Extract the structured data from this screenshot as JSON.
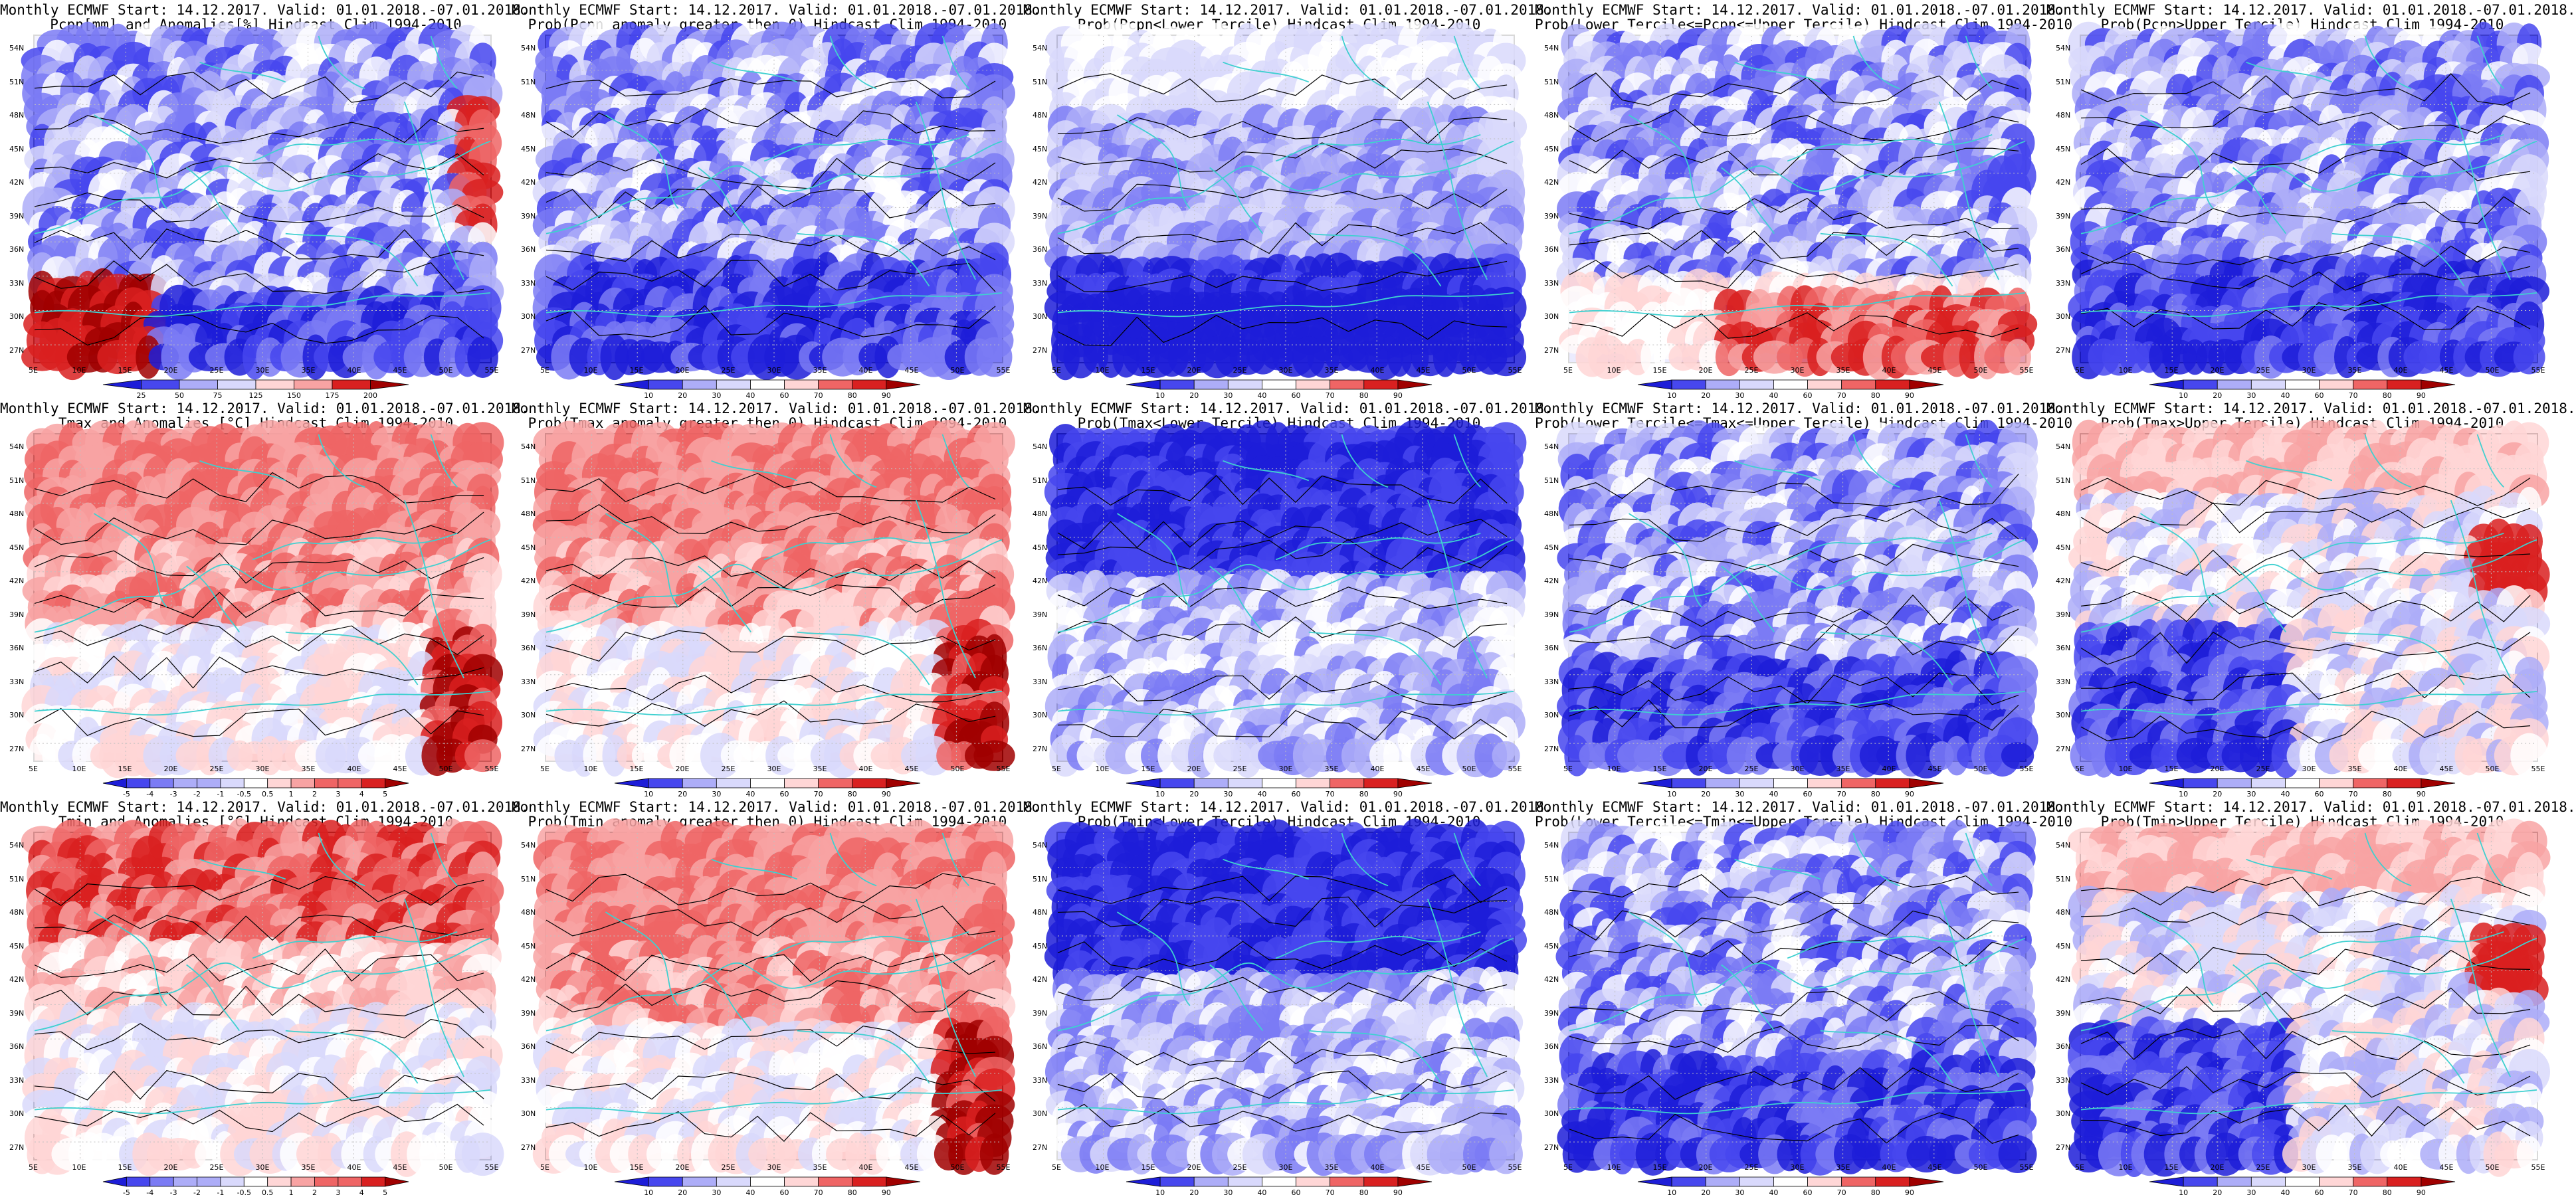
{
  "panels": [
    {
      "line1": "Monthly ECMWF Start: 14.12.2017. Valid: 01.01.2018.-07.01.2018.",
      "line2": "Pcpn[mm] and Anomalies[%] Hindcast Clim 1994-2010",
      "scale": "pcpn",
      "ticks": [
        "25",
        "50",
        "75",
        "125",
        "150",
        "175",
        "200"
      ],
      "pattern": "pcpn_anom"
    },
    {
      "line1": "Monthly ECMWF Start: 14.12.2017. Valid: 01.01.2018.-07.01.2018.",
      "line2": "Prob(Pcpn anomaly greater then 0) Hindcast Clim 1994-2010",
      "scale": "prob",
      "ticks": [
        "10",
        "20",
        "30",
        "40",
        "60",
        "70",
        "80",
        "90"
      ],
      "pattern": "blue_mid"
    },
    {
      "line1": "Monthly ECMWF Start: 14.12.2017. Valid: 01.01.2018.-07.01.2018.",
      "line2": "Prob(Pcpn<Lower Tercile) Hindcast Clim 1994-2010",
      "scale": "prob",
      "ticks": [
        "10",
        "20",
        "30",
        "40",
        "60",
        "70",
        "80",
        "90"
      ],
      "pattern": "blue_south"
    },
    {
      "line1": "Monthly ECMWF Start: 14.12.2017. Valid: 01.01.2018.-07.01.2018.",
      "line2": "Prob(Lower Tercile<=Pcpn<=Upper Tercile) Hindcast Clim 1994-2010",
      "scale": "prob",
      "ticks": [
        "10",
        "20",
        "30",
        "40",
        "60",
        "70",
        "80",
        "90"
      ],
      "pattern": "mixed_red_south"
    },
    {
      "line1": "Monthly ECMWF Start: 14.12.2017. Valid: 01.01.2018.-07.01.2018.",
      "line2": "Prob(Pcpn>Upper Tercile) Hindcast Clim 1994-2010",
      "scale": "prob",
      "ticks": [
        "10",
        "20",
        "30",
        "40",
        "60",
        "70",
        "80",
        "90"
      ],
      "pattern": "blue_mid"
    },
    {
      "line1": "Monthly ECMWF Start: 14.12.2017. Valid: 01.01.2018.-07.01.2018.",
      "line2": "Tmax and Anomalies [°C] Hindcast Clim 1994-2010",
      "scale": "temp",
      "ticks": [
        "-5",
        "-4",
        "-3",
        "-2",
        "-1",
        "-0.5",
        "0.5",
        "1",
        "2",
        "3",
        "4",
        "5"
      ],
      "pattern": "red_north"
    },
    {
      "line1": "Monthly ECMWF Start: 14.12.2017. Valid: 01.01.2018.-07.01.2018.",
      "line2": "Prob(Tmax anomaly greater then 0) Hindcast Clim 1994-2010",
      "scale": "prob",
      "ticks": [
        "10",
        "20",
        "30",
        "40",
        "60",
        "70",
        "80",
        "90"
      ],
      "pattern": "red_north"
    },
    {
      "line1": "Monthly ECMWF Start: 14.12.2017. Valid: 01.01.2018.-07.01.2018.",
      "line2": "Prob(Tmax<Lower Tercile) Hindcast Clim 1994-2010",
      "scale": "prob",
      "ticks": [
        "10",
        "20",
        "30",
        "40",
        "60",
        "70",
        "80",
        "90"
      ],
      "pattern": "blue_north"
    },
    {
      "line1": "Monthly ECMWF Start: 14.12.2017. Valid: 01.01.2018.-07.01.2018.",
      "line2": "Prob(Lower Tercile<=Tmax<=Upper Tercile) Hindcast Clim 1994-2010",
      "scale": "prob",
      "ticks": [
        "10",
        "20",
        "30",
        "40",
        "60",
        "70",
        "80",
        "90"
      ],
      "pattern": "blue_mid"
    },
    {
      "line1": "Monthly ECMWF Start: 14.12.2017. Valid: 01.01.2018.-07.01.2018.",
      "line2": "Prob(Tmax>Upper Tercile) Hindcast Clim 1994-2010",
      "scale": "prob",
      "ticks": [
        "10",
        "20",
        "30",
        "40",
        "60",
        "70",
        "80",
        "90"
      ],
      "pattern": "light_blue_sw"
    },
    {
      "line1": "Monthly ECMWF Start: 14.12.2017. Valid: 01.01.2018.-07.01.2018.",
      "line2": "Tmin and Anomalies [°C] Hindcast Clim 1994-2010",
      "scale": "temp",
      "ticks": [
        "-5",
        "-4",
        "-3",
        "-2",
        "-1",
        "-0.5",
        "0.5",
        "1",
        "2",
        "3",
        "4",
        "5"
      ],
      "pattern": "red_north_white_south"
    },
    {
      "line1": "Monthly ECMWF Start: 14.12.2017. Valid: 01.01.2018.-07.01.2018.",
      "line2": "Prob(Tmin anomaly greater then 0) Hindcast Clim 1994-2010",
      "scale": "prob",
      "ticks": [
        "10",
        "20",
        "30",
        "40",
        "60",
        "70",
        "80",
        "90"
      ],
      "pattern": "red_north"
    },
    {
      "line1": "Monthly ECMWF Start: 14.12.2017. Valid: 01.01.2018.-07.01.2018.",
      "line2": "Prob(Tmin<Lower Tercile) Hindcast Clim 1994-2010",
      "scale": "prob",
      "ticks": [
        "10",
        "20",
        "30",
        "40",
        "60",
        "70",
        "80",
        "90"
      ],
      "pattern": "blue_north"
    },
    {
      "line1": "Monthly ECMWF Start: 14.12.2017. Valid: 01.01.2018.-07.01.2018.",
      "line2": "Prob(Lower Tercile<=Tmin<=Upper Tercile) Hindcast Clim 1994-2010",
      "scale": "prob",
      "ticks": [
        "10",
        "20",
        "30",
        "40",
        "60",
        "70",
        "80",
        "90"
      ],
      "pattern": "blue_mid"
    },
    {
      "line1": "Monthly ECMWF Start: 14.12.2017. Valid: 01.01.2018.-07.01.2018.",
      "line2": "Prob(Tmin>Upper Tercile) Hindcast Clim 1994-2010",
      "scale": "prob",
      "ticks": [
        "10",
        "20",
        "30",
        "40",
        "60",
        "70",
        "80",
        "90"
      ],
      "pattern": "light_blue_sw"
    }
  ],
  "lat_labels": [
    "54N",
    "51N",
    "48N",
    "45N",
    "42N",
    "39N",
    "36N",
    "33N",
    "30N",
    "27N"
  ],
  "lon_labels": [
    "5E",
    "10E",
    "15E",
    "20E",
    "25E",
    "30E",
    "35E",
    "40E",
    "45E",
    "50E",
    "55E"
  ],
  "palettes": {
    "prob": [
      "#1d1dd8",
      "#4747ee",
      "#7b7bf4",
      "#adadf8",
      "#d9d9fc",
      "#ffffff",
      "#ffd6d6",
      "#f8a3a3",
      "#ef6565",
      "#d92020",
      "#a00000"
    ],
    "temp": [
      "#1d1dd8",
      "#4747ee",
      "#7b7bf4",
      "#adadf8",
      "#d9d9fc",
      "#ffffff",
      "#ffd6d6",
      "#f8a3a3",
      "#ef6565",
      "#d92020",
      "#a00000"
    ],
    "pcpn": [
      "#1d1dd8",
      "#4747ee",
      "#7b7bf4",
      "#adadf8",
      "#d9d9fc",
      "#ffffff",
      "#ffd6d6",
      "#f8a3a3",
      "#ef6565",
      "#d92020",
      "#a00000"
    ]
  },
  "colors": {
    "coast": "#3fd0d0",
    "contour": "#000000",
    "grid": "#c0c0c0"
  }
}
